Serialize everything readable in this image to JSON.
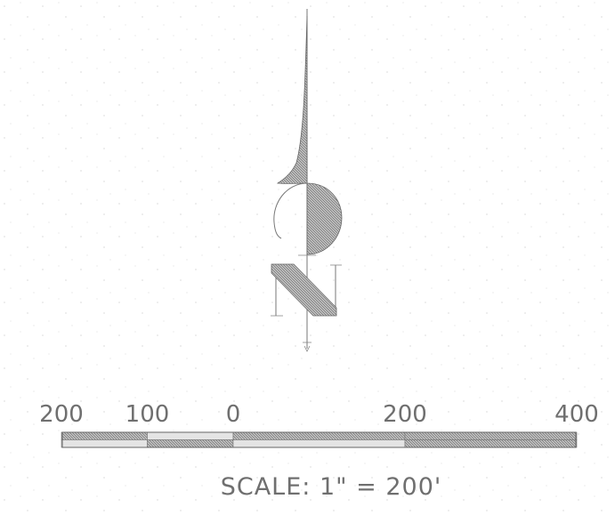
{
  "north_arrow": {
    "letter": "N"
  },
  "scale_bar": {
    "tick_labels": [
      "200",
      "100",
      "0",
      "200",
      "400"
    ],
    "segments": [
      {
        "from": -200,
        "to": -100,
        "fill": "hatched"
      },
      {
        "from": -100,
        "to": 0,
        "fill": "light"
      },
      {
        "from": 0,
        "to": 200,
        "fill": "hatched"
      },
      {
        "from": 200,
        "to": 400,
        "fill": "hatched"
      }
    ],
    "caption": "SCALE: 1\" = 200'"
  },
  "colors": {
    "ink": "#5a5a5a",
    "hatch": "#9a9a9a",
    "light_fill": "#e4e4e4",
    "paper": "#ffffff"
  }
}
